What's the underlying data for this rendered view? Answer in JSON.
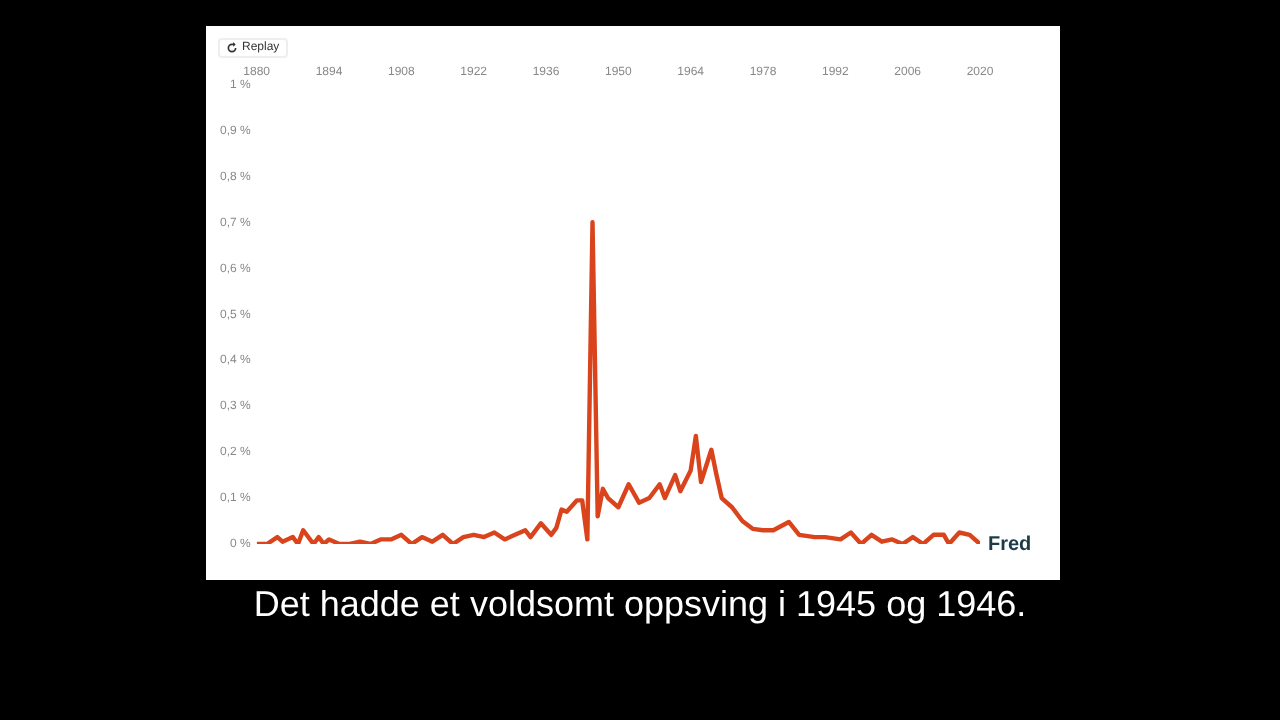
{
  "chart_data": {
    "type": "line",
    "annotations": [
      "Replay",
      "Det hadde et voldsomt oppsving i 1945 og 1946."
    ],
    "x": [
      1880,
      1882,
      1884,
      1885,
      1887,
      1888,
      1889,
      1891,
      1892,
      1893,
      1894,
      1896,
      1898,
      1900,
      1902,
      1904,
      1906,
      1908,
      1910,
      1912,
      1914,
      1916,
      1918,
      1920,
      1922,
      1924,
      1926,
      1928,
      1930,
      1932,
      1933,
      1935,
      1937,
      1938,
      1939,
      1940,
      1942,
      1943,
      1944,
      1945,
      1946,
      1947,
      1948,
      1950,
      1952,
      1954,
      1956,
      1958,
      1959,
      1961,
      1962,
      1964,
      1965,
      1966,
      1968,
      1969,
      1970,
      1972,
      1974,
      1976,
      1978,
      1980,
      1983,
      1985,
      1988,
      1990,
      1993,
      1995,
      1997,
      1999,
      2001,
      2003,
      2005,
      2007,
      2009,
      2011,
      2013,
      2014,
      2016,
      2018,
      2020
    ],
    "series": [
      {
        "name": "Fred",
        "color": "#d9441c",
        "values": [
          0,
          0,
          0.015,
          0.005,
          0.015,
          0,
          0.03,
          0,
          0.015,
          0,
          0.01,
          0,
          0,
          0.005,
          0,
          0.01,
          0.01,
          0.02,
          0,
          0.015,
          0.005,
          0.02,
          0,
          0.015,
          0.02,
          0.015,
          0.025,
          0.01,
          0.02,
          0.03,
          0.015,
          0.045,
          0.02,
          0.035,
          0.075,
          0.07,
          0.095,
          0.095,
          0.01,
          0.7,
          0.06,
          0.12,
          0.1,
          0.08,
          0.13,
          0.09,
          0.1,
          0.13,
          0.1,
          0.15,
          0.115,
          0.16,
          0.235,
          0.135,
          0.205,
          0.15,
          0.1,
          0.08,
          0.05,
          0.033,
          0.03,
          0.03,
          0.048,
          0.02,
          0.015,
          0.015,
          0.01,
          0.025,
          0,
          0.02,
          0.005,
          0.01,
          0,
          0.015,
          0,
          0.02,
          0.02,
          0,
          0.025,
          0.02,
          0
        ]
      }
    ],
    "xlim": [
      1880,
      2020
    ],
    "xticks": [
      1880,
      1894,
      1908,
      1922,
      1936,
      1950,
      1964,
      1978,
      1992,
      2006,
      2020
    ],
    "ylim": [
      0,
      1
    ],
    "yticks": [
      {
        "value": 0,
        "label": "0 %"
      },
      {
        "value": 0.1,
        "label": "0,1 %"
      },
      {
        "value": 0.2,
        "label": "0,2 %"
      },
      {
        "value": 0.3,
        "label": "0,3 %"
      },
      {
        "value": 0.4,
        "label": "0,4 %"
      },
      {
        "value": 0.5,
        "label": "0,5 %"
      },
      {
        "value": 0.6,
        "label": "0,6 %"
      },
      {
        "value": 0.7,
        "label": "0,7 %"
      },
      {
        "value": 0.8,
        "label": "0,8 %"
      },
      {
        "value": 0.9,
        "label": "0,9 %"
      },
      {
        "value": 1,
        "label": "1 %"
      }
    ],
    "marker": "none",
    "legend": false
  }
}
